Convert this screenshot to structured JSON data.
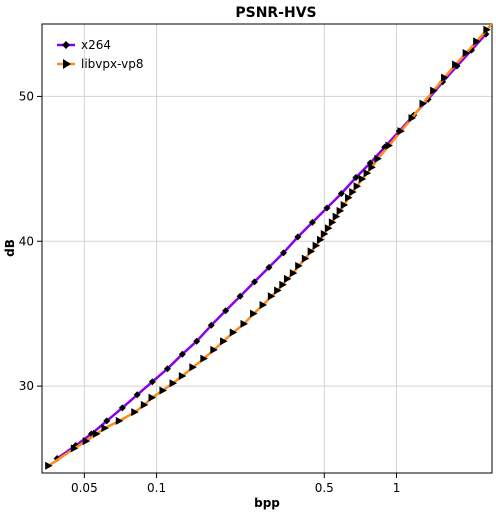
{
  "chart_data": {
    "type": "line",
    "title": "PSNR-HVS",
    "xlabel": "bpp",
    "ylabel": "dB",
    "x_scale": "log",
    "xlim": [
      0.0333,
      2.5
    ],
    "ylim": [
      24.0,
      55.0
    ],
    "x_ticks": [
      0.05,
      0.1,
      0.5,
      1
    ],
    "x_tick_labels": [
      "0.05",
      "0.1",
      "0.5",
      "1"
    ],
    "y_ticks": [
      30,
      40,
      50
    ],
    "y_tick_labels": [
      "30",
      "40",
      "50"
    ],
    "grid": true,
    "legend_position": "top-left",
    "series": [
      {
        "name": "x264",
        "color": "#8800ee",
        "marker": "diamond",
        "x": [
          0.0385,
          0.046,
          0.0535,
          0.062,
          0.072,
          0.083,
          0.096,
          0.111,
          0.128,
          0.147,
          0.169,
          0.194,
          0.223,
          0.256,
          0.294,
          0.338,
          0.388,
          0.446,
          0.513,
          0.589,
          0.677,
          0.777,
          0.893,
          1.026,
          1.179,
          1.354,
          1.556,
          1.787,
          2.053,
          2.358
        ],
        "y": [
          25.0,
          25.9,
          26.7,
          27.6,
          28.5,
          29.4,
          30.3,
          31.2,
          32.2,
          33.1,
          34.2,
          35.2,
          36.2,
          37.2,
          38.2,
          39.2,
          40.3,
          41.3,
          42.3,
          43.3,
          44.4,
          45.4,
          46.5,
          47.6,
          48.7,
          49.8,
          51.0,
          52.1,
          53.2,
          54.3
        ]
      },
      {
        "name": "libvpx-vp8",
        "color": "#ff8c1a",
        "marker": "triangle-right",
        "x": [
          0.0355,
          0.0454,
          0.0509,
          0.0562,
          0.0609,
          0.0699,
          0.0811,
          0.0889,
          0.0957,
          0.1063,
          0.1171,
          0.128,
          0.1416,
          0.1574,
          0.1732,
          0.1902,
          0.2087,
          0.2314,
          0.2536,
          0.2778,
          0.3008,
          0.3195,
          0.3357,
          0.3511,
          0.3714,
          0.3911,
          0.4168,
          0.4408,
          0.4623,
          0.4821,
          0.5001,
          0.5201,
          0.5401,
          0.5603,
          0.5821,
          0.6052,
          0.6308,
          0.6566,
          0.6852,
          0.7196,
          0.7539,
          0.7892,
          0.8358,
          0.9302,
          1.0432,
          1.1603,
          1.2892,
          1.4278,
          1.5853,
          1.7635,
          1.9509,
          2.1578,
          2.3793,
          2.5794
        ],
        "y": [
          24.5,
          25.7,
          26.2,
          26.7,
          27.1,
          27.6,
          28.2,
          28.7,
          29.2,
          29.7,
          30.2,
          30.7,
          31.3,
          31.9,
          32.5,
          33.1,
          33.7,
          34.3,
          35.0,
          35.6,
          36.2,
          36.6,
          37.0,
          37.4,
          37.8,
          38.3,
          38.8,
          39.3,
          39.7,
          40.1,
          40.5,
          40.9,
          41.3,
          41.7,
          42.1,
          42.5,
          43.0,
          43.4,
          43.8,
          44.3,
          44.7,
          45.1,
          45.7,
          46.6,
          47.6,
          48.5,
          49.5,
          50.4,
          51.3,
          52.2,
          53.0,
          53.8,
          54.6,
          55.3
        ]
      }
    ]
  }
}
